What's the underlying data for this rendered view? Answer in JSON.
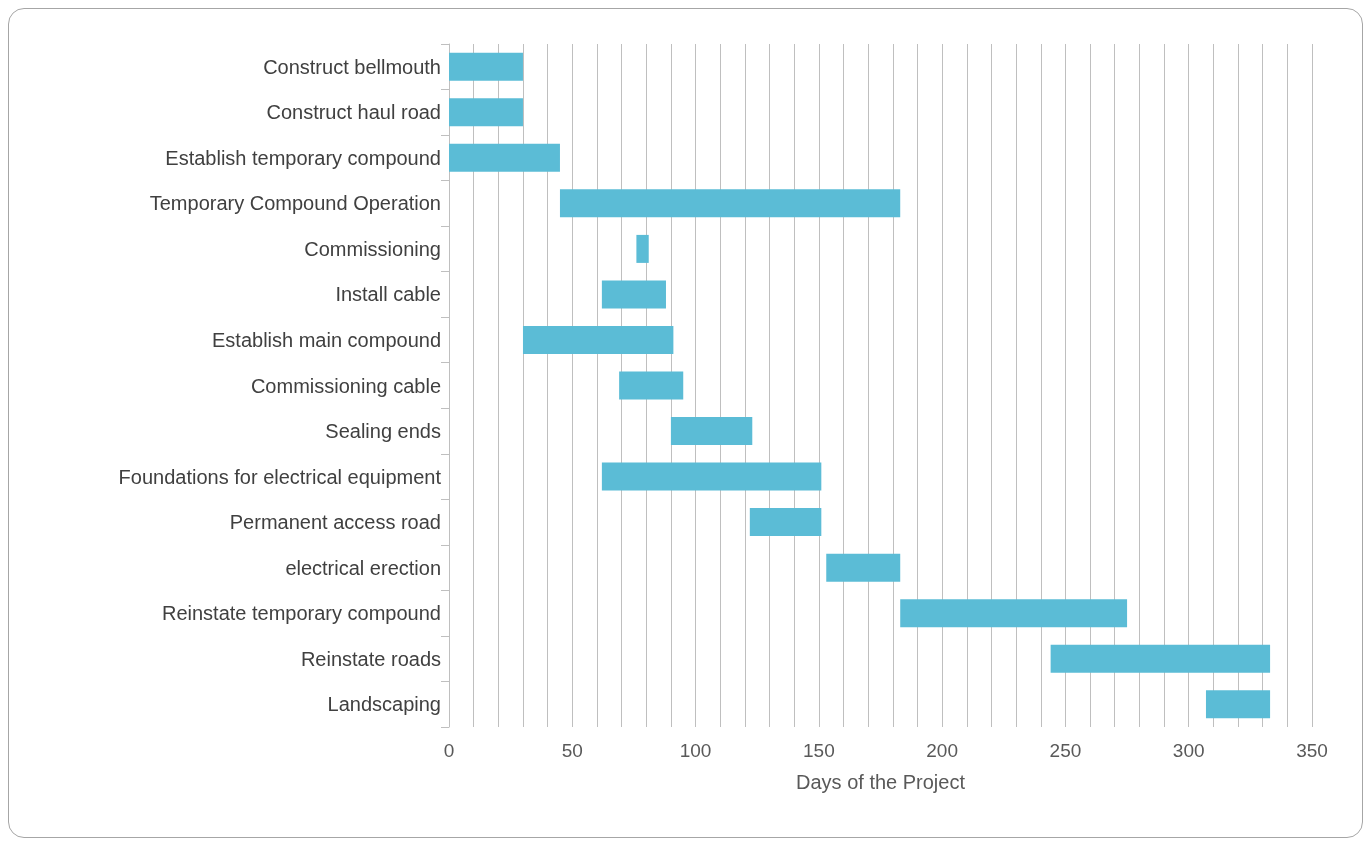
{
  "chart_data": {
    "type": "bar",
    "orientation": "horizontal",
    "xlabel": "Days of the Project",
    "categories": [
      "Construct bellmouth",
      "Construct haul road",
      "Establish temporary compound",
      "Temporary Compound Operation",
      "Commissioning",
      "Install cable",
      "Establish main compound",
      "Commissioning cable",
      "Sealing ends",
      "Foundations for electrical equipment",
      "Permanent access road",
      "electrical erection",
      "Reinstate temporary compound",
      "Reinstate roads",
      "Landscaping"
    ],
    "base": [
      0,
      0,
      0,
      45,
      76,
      62,
      30,
      69,
      90,
      62,
      122,
      153,
      183,
      244,
      307
    ],
    "values": [
      30,
      30,
      45,
      138,
      5,
      26,
      61,
      26,
      33,
      89,
      29,
      30,
      92,
      89,
      26
    ],
    "color": "#5bbcd6",
    "xlim": [
      0,
      350
    ],
    "xticks": [
      0,
      {
        "value": 10,
        "label": null
      },
      {
        "value": 20,
        "label": null
      },
      {
        "value": 30,
        "label": null
      },
      {
        "value": 40,
        "label": null
      },
      50,
      {
        "value": 60,
        "label": null
      },
      {
        "value": 70,
        "label": null
      },
      {
        "value": 80,
        "label": null
      },
      {
        "value": 90,
        "label": null
      },
      100,
      {
        "value": 110,
        "label": null
      },
      {
        "value": 120,
        "label": null
      },
      {
        "value": 130,
        "label": null
      },
      {
        "value": 140,
        "label": null
      },
      150,
      {
        "value": 160,
        "label": null
      },
      {
        "value": 170,
        "label": null
      },
      {
        "value": 180,
        "label": null
      },
      {
        "value": 190,
        "label": null
      },
      200,
      {
        "value": 210,
        "label": null
      },
      {
        "value": 220,
        "label": null
      },
      {
        "value": 230,
        "label": null
      },
      {
        "value": 240,
        "label": null
      },
      250,
      {
        "value": 260,
        "label": null
      },
      {
        "value": 270,
        "label": null
      },
      {
        "value": 280,
        "label": null
      },
      {
        "value": 290,
        "label": null
      },
      300,
      {
        "value": 310,
        "label": null
      },
      {
        "value": 320,
        "label": null
      },
      {
        "value": 330,
        "label": null
      },
      {
        "value": 340,
        "label": null
      },
      350
    ],
    "grid": "x"
  }
}
